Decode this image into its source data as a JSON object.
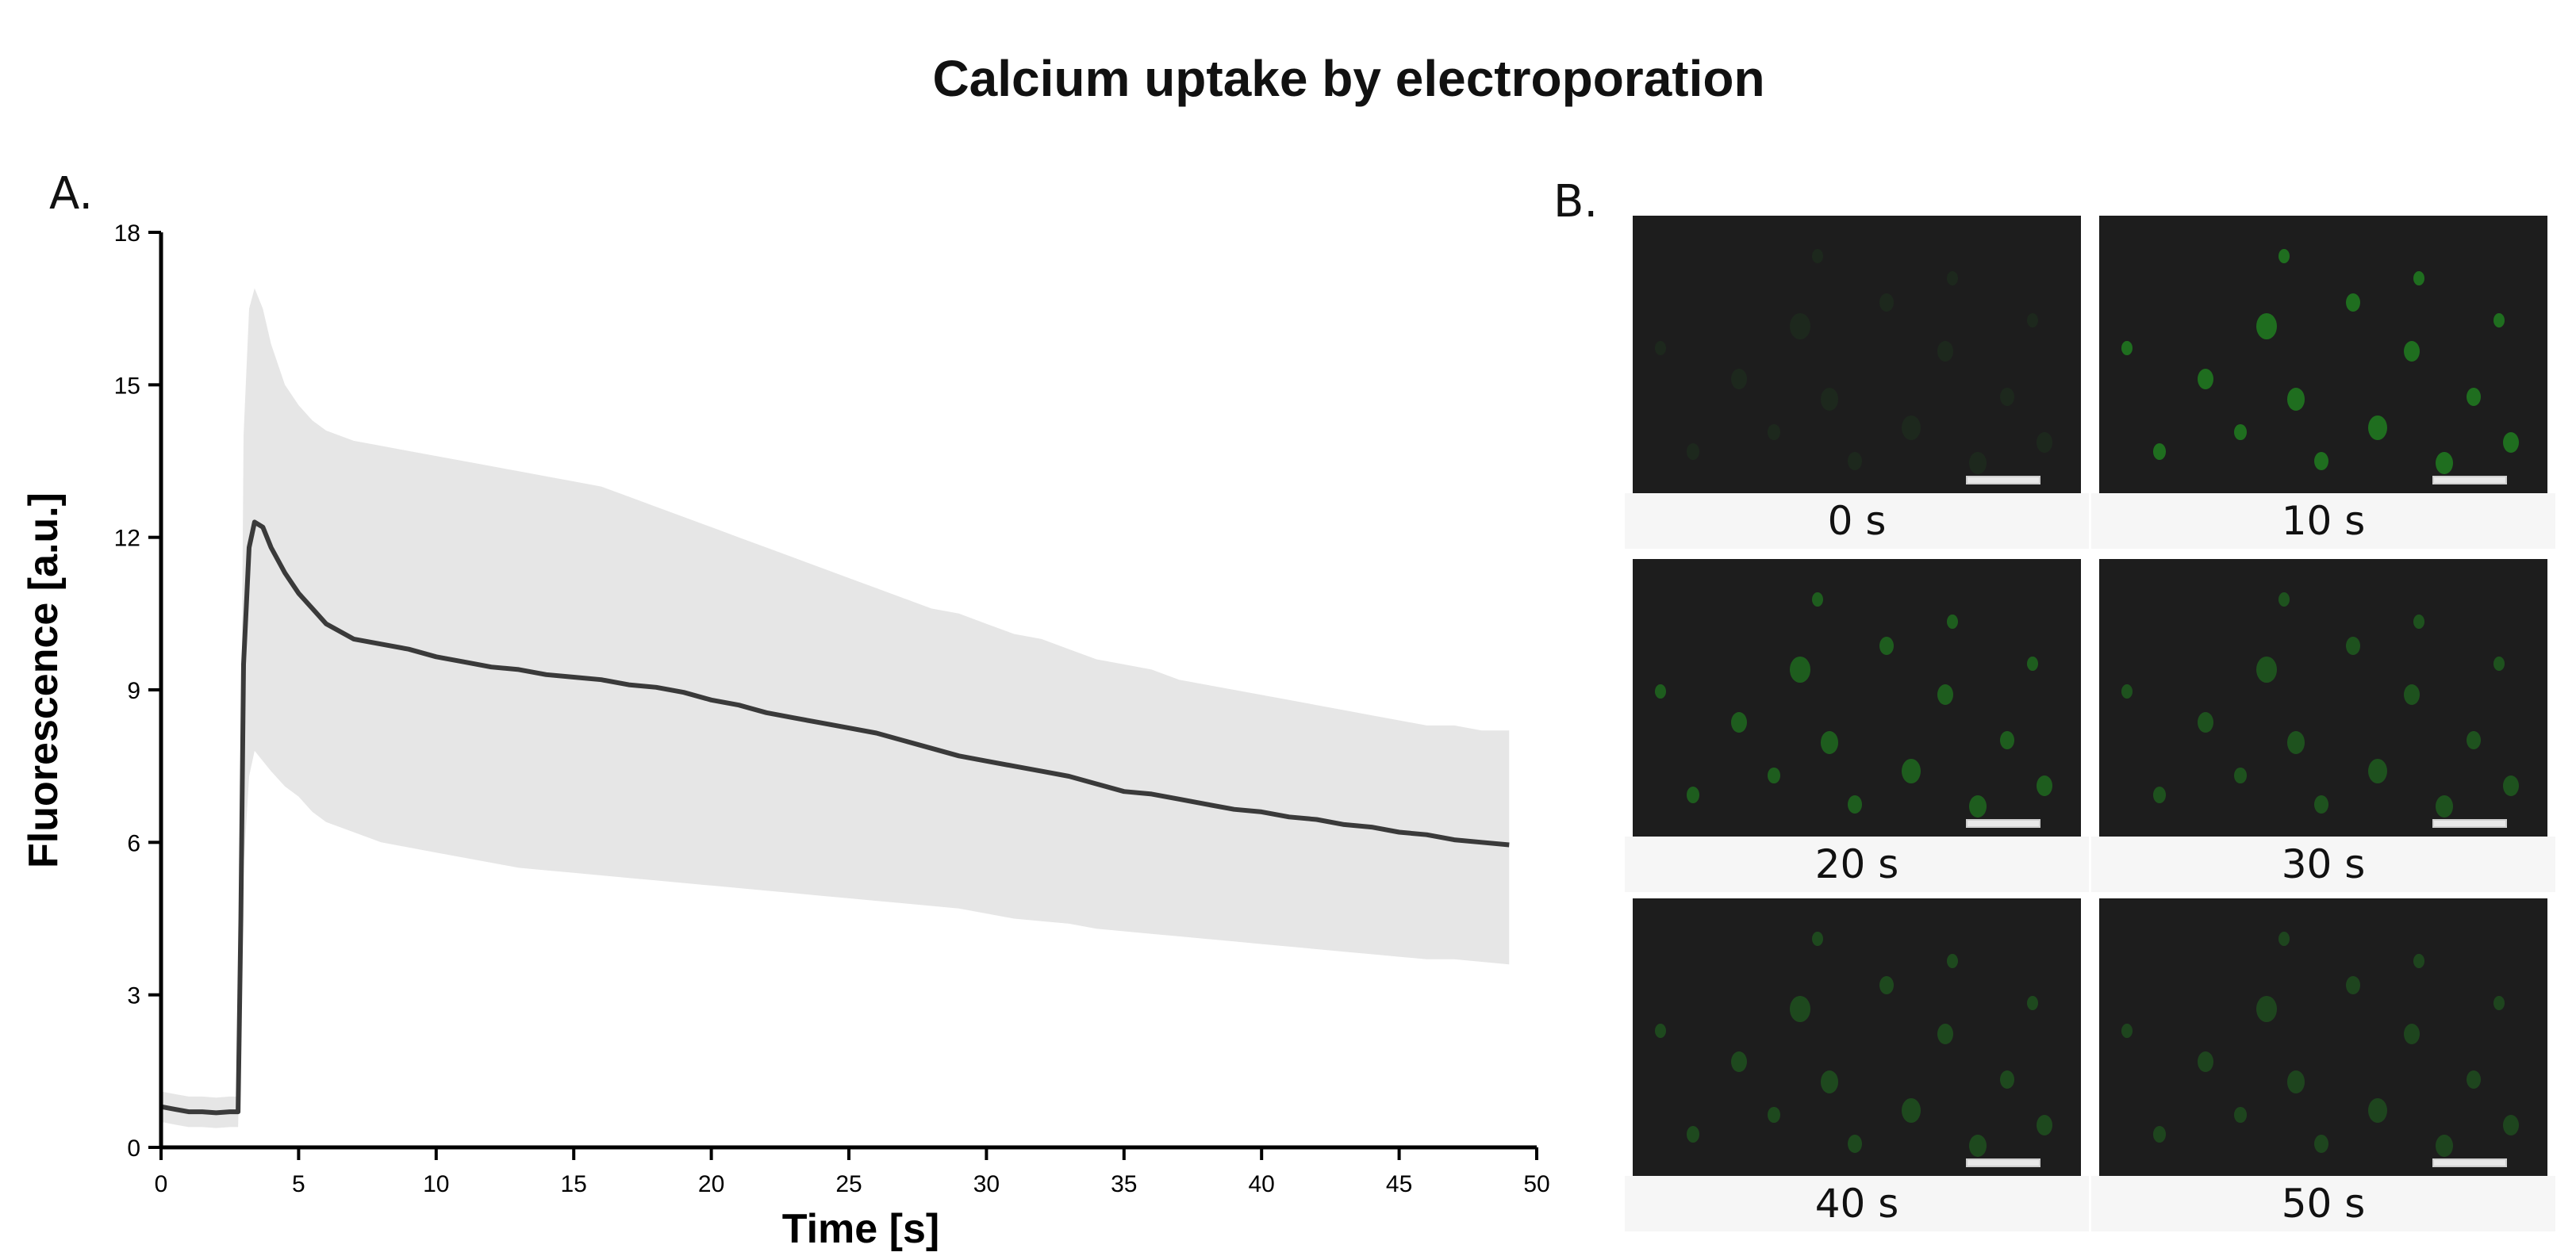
{
  "figure": {
    "title": "Calcium uptake by electroporation",
    "panel_a_label": "A.",
    "panel_b_label": "B."
  },
  "chart_data": {
    "type": "line",
    "title": "",
    "xlabel": "Time [s]",
    "ylabel": "Fluorescence [a.u.]",
    "xlim": [
      0,
      50
    ],
    "ylim": [
      0,
      18
    ],
    "xticks": [
      0,
      5,
      10,
      15,
      20,
      25,
      30,
      35,
      40,
      45,
      50
    ],
    "yticks": [
      0,
      3,
      6,
      9,
      12,
      15,
      18
    ],
    "grid": false,
    "legend": "none",
    "series": [
      {
        "line_color": "#3a3a3a",
        "band_color": "#e6e6e6",
        "x": [
          0,
          0.5,
          1,
          1.5,
          2,
          2.5,
          2.8,
          2.9,
          3.0,
          3.2,
          3.4,
          3.7,
          4.0,
          4.5,
          5,
          5.5,
          6,
          7,
          8,
          9,
          10,
          11,
          12,
          13,
          14,
          15,
          16,
          17,
          18,
          19,
          20,
          21,
          22,
          23,
          24,
          25,
          26,
          27,
          28,
          29,
          30,
          31,
          32,
          33,
          34,
          35,
          36,
          37,
          38,
          39,
          40,
          41,
          42,
          43,
          44,
          45,
          46,
          47,
          48,
          49
        ],
        "mean": [
          0.8,
          0.75,
          0.7,
          0.7,
          0.68,
          0.7,
          0.7,
          4.5,
          9.5,
          11.8,
          12.3,
          12.2,
          11.8,
          11.3,
          10.9,
          10.6,
          10.3,
          10.0,
          9.9,
          9.8,
          9.65,
          9.55,
          9.45,
          9.4,
          9.3,
          9.25,
          9.2,
          9.1,
          9.05,
          8.95,
          8.8,
          8.7,
          8.55,
          8.45,
          8.35,
          8.25,
          8.15,
          8.0,
          7.85,
          7.7,
          7.6,
          7.5,
          7.4,
          7.3,
          7.15,
          7.0,
          6.95,
          6.85,
          6.75,
          6.65,
          6.6,
          6.5,
          6.45,
          6.35,
          6.3,
          6.2,
          6.15,
          6.05,
          6.0,
          5.95
        ],
        "upper": [
          1.1,
          1.05,
          1.0,
          1.0,
          0.98,
          1.0,
          1.0,
          7.0,
          14.0,
          16.5,
          16.9,
          16.5,
          15.8,
          15.0,
          14.6,
          14.3,
          14.1,
          13.9,
          13.8,
          13.7,
          13.6,
          13.5,
          13.4,
          13.3,
          13.2,
          13.1,
          13.0,
          12.8,
          12.6,
          12.4,
          12.2,
          12.0,
          11.8,
          11.6,
          11.4,
          11.2,
          11.0,
          10.8,
          10.6,
          10.5,
          10.3,
          10.1,
          10.0,
          9.8,
          9.6,
          9.5,
          9.4,
          9.2,
          9.1,
          9.0,
          8.9,
          8.8,
          8.7,
          8.6,
          8.5,
          8.4,
          8.3,
          8.3,
          8.2,
          8.2
        ],
        "lower": [
          0.5,
          0.45,
          0.4,
          0.4,
          0.38,
          0.4,
          0.4,
          2.5,
          5.5,
          7.3,
          7.8,
          7.6,
          7.4,
          7.1,
          6.9,
          6.6,
          6.4,
          6.2,
          6.0,
          5.9,
          5.8,
          5.7,
          5.6,
          5.5,
          5.45,
          5.4,
          5.35,
          5.3,
          5.25,
          5.2,
          5.15,
          5.1,
          5.05,
          5.0,
          4.95,
          4.9,
          4.85,
          4.8,
          4.75,
          4.7,
          4.6,
          4.5,
          4.45,
          4.4,
          4.3,
          4.25,
          4.2,
          4.15,
          4.1,
          4.05,
          4.0,
          3.95,
          3.9,
          3.85,
          3.8,
          3.75,
          3.7,
          3.7,
          3.65,
          3.6
        ]
      }
    ]
  },
  "panel_b": {
    "images": [
      {
        "caption": "0 s",
        "intensity": 0.15
      },
      {
        "caption": "10 s",
        "intensity": 1.0
      },
      {
        "caption": "20 s",
        "intensity": 0.8
      },
      {
        "caption": "30 s",
        "intensity": 0.65
      },
      {
        "caption": "40 s",
        "intensity": 0.55
      },
      {
        "caption": "50 s",
        "intensity": 0.5
      }
    ]
  }
}
